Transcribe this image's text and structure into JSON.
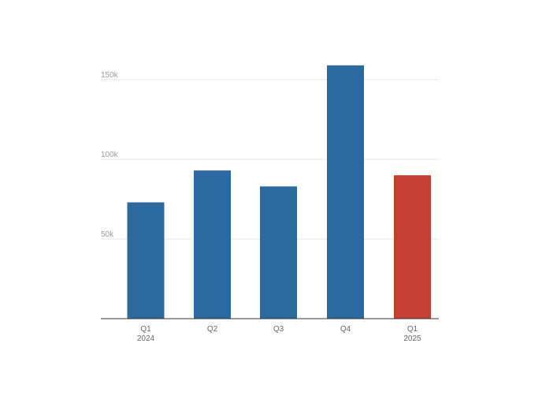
{
  "chart_data": {
    "type": "bar",
    "categories": [
      [
        "Q1",
        "2024"
      ],
      [
        "Q2"
      ],
      [
        "Q3"
      ],
      [
        "Q4"
      ],
      [
        "Q1",
        "2025"
      ]
    ],
    "values": [
      73000,
      93000,
      83000,
      159000,
      90000
    ],
    "bar_colors": [
      "#2c699e",
      "#2c699e",
      "#2c699e",
      "#2c699e",
      "#c33f33"
    ],
    "ylim": [
      0,
      160000
    ],
    "yticks": [
      {
        "value": 50000,
        "label": "50k"
      },
      {
        "value": 100000,
        "label": "100k"
      },
      {
        "value": 150000,
        "label": "150k"
      }
    ],
    "grid": true,
    "title": "",
    "xlabel": "",
    "ylabel": ""
  }
}
